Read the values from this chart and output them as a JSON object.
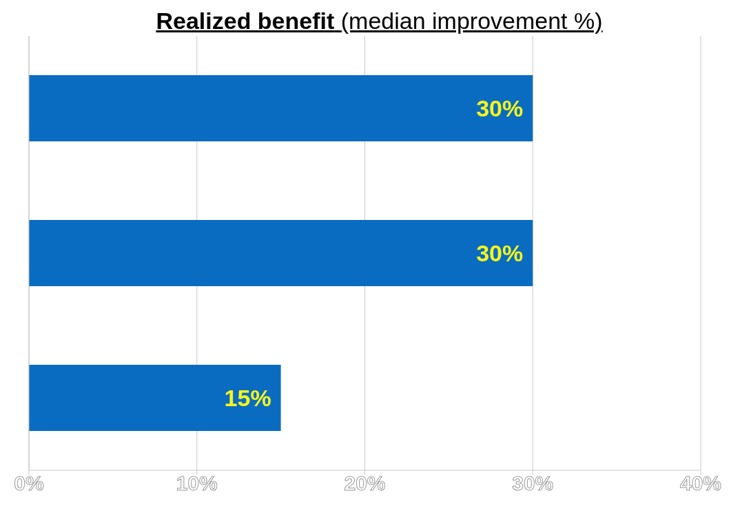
{
  "chart_data": {
    "type": "bar",
    "orientation": "horizontal",
    "title": "Realized benefit",
    "subtitle": "(median improvement %)",
    "categories": [
      null,
      null,
      null
    ],
    "values": [
      30,
      30,
      15
    ],
    "color": "#0a6cc0",
    "value_labels": [
      "30%",
      "30%",
      "15%"
    ],
    "xlim": [
      0,
      40
    ],
    "xticks": [
      {
        "value": 0,
        "label": "0%"
      },
      {
        "value": 10,
        "label": "10%"
      },
      {
        "value": 20,
        "label": "20%"
      },
      {
        "value": 30,
        "label": "30%"
      },
      {
        "value": 40,
        "label": "40%"
      }
    ],
    "grid": "x"
  }
}
